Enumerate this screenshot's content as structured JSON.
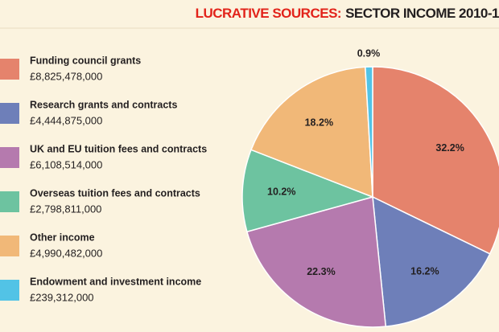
{
  "chart_data": {
    "type": "pie",
    "title_highlight": "LUCRATIVE SOURCES:",
    "title": "SECTOR INCOME 2010-1",
    "categories": [
      "Funding council grants",
      "Research grants and contracts",
      "UK and EU tuition fees and contracts",
      "Overseas tuition fees and contracts",
      "Other income",
      "Endowment and investment income"
    ],
    "details": [
      "£8,825,478,000",
      "£4,444,875,000",
      "£6,108,514,000",
      "£2,798,811,000",
      "£4,990,482,000",
      "£239,312,000"
    ],
    "values": [
      32.2,
      16.2,
      22.3,
      10.2,
      18.2,
      0.9
    ],
    "value_labels": [
      "32.2%",
      "16.2%",
      "22.3%",
      "10.2%",
      "18.2%",
      "0.9%"
    ],
    "colors": [
      "#e5836c",
      "#6e7fb9",
      "#b57aae",
      "#6dc3a0",
      "#f1b878",
      "#52c3e6"
    ]
  }
}
